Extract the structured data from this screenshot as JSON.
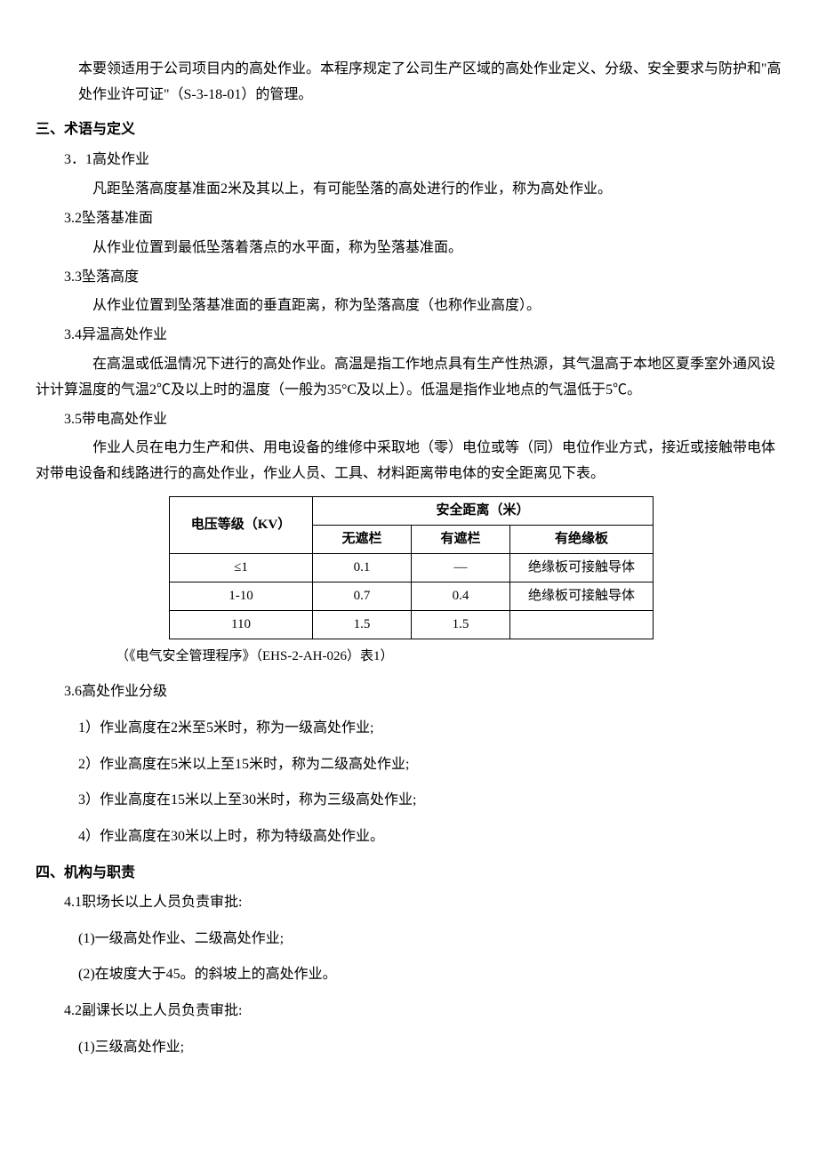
{
  "intro": "本要领适用于公司项目内的高处作业。本程序规定了公司生产区域的高处作业定义、分级、安全要求与防护和\"高处作业许可证\"（S-3-18-01）的管理。",
  "section3": {
    "title": "三、术语与定义",
    "items": {
      "s31": {
        "num": "3．1高处作业",
        "body": "凡距坠落高度基准面2米及其以上，有可能坠落的高处进行的作业，称为高处作业。"
      },
      "s32": {
        "num": "3.2坠落基准面",
        "body": "从作业位置到最低坠落着落点的水平面，称为坠落基准面。"
      },
      "s33": {
        "num": "3.3坠落高度",
        "body": "从作业位置到坠落基准面的垂直距离，称为坠落高度（也称作业高度）。"
      },
      "s34": {
        "num": "3.4异温高处作业",
        "body": "在高温或低温情况下进行的高处作业。高温是指工作地点具有生产性热源，其气温高于本地区夏季室外通风设计计算温度的气温2℃及以上时的温度（一般为35°C及以上）。低温是指作业地点的气温低于5℃。"
      },
      "s35": {
        "num": "3.5带电高处作业",
        "body": "作业人员在电力生产和供、用电设备的维修中采取地（零）电位或等（同）电位作业方式，接近或接触带电体对带电设备和线路进行的高处作业，作业人员、工具、材料距离带电体的安全距离见下表。"
      },
      "s36": {
        "num": "3.6高处作业分级",
        "l1": "1）作业高度在2米至5米时，称为一级高处作业;",
        "l2": "2）作业高度在5米以上至15米时，称为二级高处作业;",
        "l3": "3）作业高度在15米以上至30米时，称为三级高处作业;",
        "l4": "4）作业高度在30米以上时，称为特级高处作业。"
      }
    }
  },
  "table": {
    "header1_col1": "电压等级（KV）",
    "header1_col2": "安全距离（米）",
    "header2_c1": "无遮栏",
    "header2_c2": "有遮栏",
    "header2_c3": "有绝缘板",
    "rows": {
      "r1": {
        "c0": "≤1",
        "c1": "0.1",
        "c2": "—",
        "c3": "绝缘板可接触导体"
      },
      "r2": {
        "c0": "1-10",
        "c1": "0.7",
        "c2": "0.4",
        "c3": "绝缘板可接触导体"
      },
      "r3": {
        "c0": "110",
        "c1": "1.5",
        "c2": "1.5",
        "c3": ""
      }
    },
    "note": "（《电气安全管理程序》（EHS-2-AH-026）表1）"
  },
  "section4": {
    "title": "四、机构与职责",
    "s41": {
      "num": "4.1职场长以上人员负责审批:",
      "l1": "(1)一级高处作业、二级高处作业;",
      "l2": "(2)在坡度大于45。的斜坡上的高处作业。"
    },
    "s42": {
      "num": "4.2副课长以上人员负责审批:",
      "l1": "(1)三级高处作业;"
    }
  }
}
